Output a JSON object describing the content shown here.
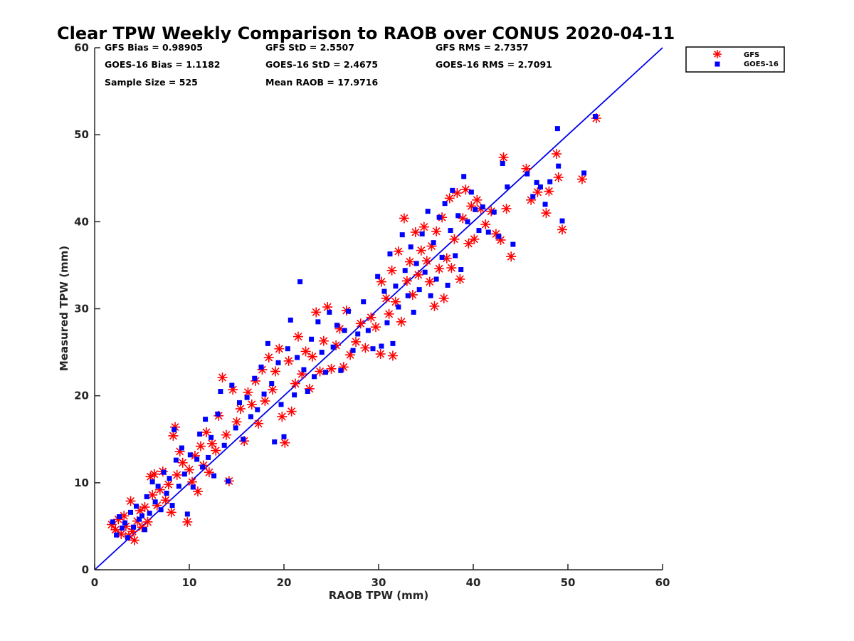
{
  "chart_data": {
    "type": "scatter",
    "title": "Clear TPW Weekly Comparison to RAOB over CONUS 2020-04-11",
    "xlabel": "RAOB TPW (mm)",
    "ylabel": "Measured TPW (mm)",
    "xlim": [
      0,
      60
    ],
    "ylim": [
      0,
      60
    ],
    "xticks": [
      "0",
      "10",
      "20",
      "30",
      "40",
      "50",
      "60"
    ],
    "yticks": [
      "0",
      "10",
      "20",
      "30",
      "40",
      "50",
      "60"
    ],
    "grid": false,
    "legend_position": "top-right, outside plot",
    "reference_line": {
      "x": [
        0,
        60
      ],
      "y": [
        0,
        60
      ],
      "color": "#0000ee"
    },
    "stats": [
      "GFS Bias = 0.98905",
      "GFS StD = 2.5507",
      "GFS RMS = 2.7357",
      "GOES-16 Bias = 1.1182",
      "GOES-16 StD = 2.4675",
      "GOES-16 RMS = 2.7091",
      "Sample Size = 525",
      "Mean RAOB = 17.9716"
    ],
    "series": [
      {
        "name": "GFS",
        "marker": "asterisk",
        "color": "#ff0000",
        "points": [
          [
            1.8,
            5.2
          ],
          [
            2.2,
            4.6
          ],
          [
            2.5,
            5.8
          ],
          [
            2.8,
            4.1
          ],
          [
            3.1,
            6.2
          ],
          [
            3.3,
            5.0
          ],
          [
            3.6,
            3.9
          ],
          [
            3.8,
            7.9
          ],
          [
            4.0,
            4.4
          ],
          [
            4.2,
            3.4
          ],
          [
            4.5,
            5.6
          ],
          [
            4.8,
            6.8
          ],
          [
            5.0,
            4.9
          ],
          [
            5.3,
            7.2
          ],
          [
            5.6,
            5.5
          ],
          [
            5.9,
            10.7
          ],
          [
            6.1,
            8.6
          ],
          [
            6.3,
            11.0
          ],
          [
            6.6,
            7.4
          ],
          [
            6.9,
            9.2
          ],
          [
            7.2,
            11.3
          ],
          [
            7.5,
            8.0
          ],
          [
            7.8,
            9.8
          ],
          [
            8.1,
            6.6
          ],
          [
            8.3,
            15.4
          ],
          [
            8.5,
            16.4
          ],
          [
            8.7,
            10.9
          ],
          [
            9.0,
            13.6
          ],
          [
            9.3,
            12.3
          ],
          [
            9.8,
            5.5
          ],
          [
            10.0,
            11.5
          ],
          [
            10.3,
            10.1
          ],
          [
            10.6,
            13.1
          ],
          [
            10.9,
            9.0
          ],
          [
            11.2,
            14.2
          ],
          [
            11.5,
            12.0
          ],
          [
            11.8,
            15.8
          ],
          [
            12.1,
            11.2
          ],
          [
            12.4,
            14.5
          ],
          [
            12.8,
            13.7
          ],
          [
            13.1,
            17.7
          ],
          [
            13.5,
            22.1
          ],
          [
            13.9,
            15.5
          ],
          [
            14.2,
            10.2
          ],
          [
            14.6,
            20.7
          ],
          [
            15.0,
            17.0
          ],
          [
            15.4,
            18.5
          ],
          [
            15.8,
            14.8
          ],
          [
            16.2,
            20.4
          ],
          [
            16.6,
            19.0
          ],
          [
            17.0,
            21.7
          ],
          [
            17.3,
            16.8
          ],
          [
            17.7,
            23.0
          ],
          [
            18.0,
            19.4
          ],
          [
            18.4,
            24.4
          ],
          [
            18.8,
            20.7
          ],
          [
            19.1,
            22.8
          ],
          [
            19.5,
            25.4
          ],
          [
            19.8,
            17.6
          ],
          [
            20.1,
            14.6
          ],
          [
            20.5,
            24.0
          ],
          [
            20.8,
            18.2
          ],
          [
            21.2,
            21.4
          ],
          [
            21.5,
            26.8
          ],
          [
            21.9,
            22.5
          ],
          [
            22.3,
            25.1
          ],
          [
            22.7,
            20.8
          ],
          [
            23.0,
            24.5
          ],
          [
            23.4,
            29.6
          ],
          [
            23.8,
            22.8
          ],
          [
            24.2,
            26.3
          ],
          [
            24.6,
            30.2
          ],
          [
            25.0,
            23.1
          ],
          [
            25.5,
            25.8
          ],
          [
            25.9,
            27.7
          ],
          [
            26.3,
            23.3
          ],
          [
            26.6,
            29.8
          ],
          [
            27.0,
            24.7
          ],
          [
            27.6,
            26.2
          ],
          [
            28.1,
            28.3
          ],
          [
            28.6,
            25.5
          ],
          [
            29.2,
            29.0
          ],
          [
            29.7,
            27.9
          ],
          [
            30.3,
            33.1
          ],
          [
            30.2,
            24.8
          ],
          [
            30.8,
            31.2
          ],
          [
            31.1,
            29.4
          ],
          [
            31.4,
            34.4
          ],
          [
            31.5,
            24.6
          ],
          [
            31.8,
            30.8
          ],
          [
            32.1,
            36.6
          ],
          [
            32.4,
            28.5
          ],
          [
            32.7,
            40.4
          ],
          [
            33.0,
            33.2
          ],
          [
            33.3,
            35.4
          ],
          [
            33.6,
            31.6
          ],
          [
            33.9,
            38.8
          ],
          [
            34.2,
            33.9
          ],
          [
            34.5,
            36.7
          ],
          [
            34.8,
            39.4
          ],
          [
            35.1,
            35.5
          ],
          [
            35.4,
            33.1
          ],
          [
            35.6,
            37.2
          ],
          [
            35.9,
            30.3
          ],
          [
            36.1,
            38.9
          ],
          [
            36.4,
            34.6
          ],
          [
            36.7,
            40.5
          ],
          [
            36.9,
            31.2
          ],
          [
            37.2,
            35.8
          ],
          [
            37.5,
            42.7
          ],
          [
            37.7,
            34.7
          ],
          [
            38.0,
            38.0
          ],
          [
            38.3,
            43.3
          ],
          [
            38.6,
            33.4
          ],
          [
            38.9,
            40.4
          ],
          [
            39.2,
            43.7
          ],
          [
            39.5,
            37.5
          ],
          [
            39.8,
            41.8
          ],
          [
            40.1,
            38.0
          ],
          [
            40.4,
            42.5
          ],
          [
            40.8,
            41.5
          ],
          [
            41.3,
            39.7
          ],
          [
            41.9,
            41.2
          ],
          [
            42.4,
            38.6
          ],
          [
            42.9,
            37.9
          ],
          [
            43.2,
            47.4
          ],
          [
            43.5,
            41.5
          ],
          [
            44.0,
            36.0
          ],
          [
            45.6,
            46.1
          ],
          [
            46.1,
            42.5
          ],
          [
            46.8,
            43.4
          ],
          [
            47.7,
            41.0
          ],
          [
            48.0,
            43.5
          ],
          [
            48.8,
            47.8
          ],
          [
            49.0,
            45.1
          ],
          [
            49.4,
            39.1
          ],
          [
            51.5,
            44.9
          ],
          [
            53.0,
            51.9
          ]
        ]
      },
      {
        "name": "GOES-16",
        "marker": "square",
        "color": "#0000ff",
        "points": [
          [
            1.9,
            5.5
          ],
          [
            2.3,
            4.0
          ],
          [
            2.6,
            6.1
          ],
          [
            2.9,
            4.8
          ],
          [
            3.2,
            5.4
          ],
          [
            3.5,
            3.7
          ],
          [
            3.8,
            6.6
          ],
          [
            4.1,
            4.9
          ],
          [
            4.4,
            7.3
          ],
          [
            4.7,
            5.8
          ],
          [
            5.0,
            6.2
          ],
          [
            5.3,
            4.6
          ],
          [
            5.5,
            8.4
          ],
          [
            5.8,
            6.5
          ],
          [
            6.1,
            10.1
          ],
          [
            6.4,
            7.8
          ],
          [
            6.7,
            9.6
          ],
          [
            7.0,
            6.9
          ],
          [
            7.3,
            11.2
          ],
          [
            7.6,
            8.8
          ],
          [
            7.9,
            10.5
          ],
          [
            8.2,
            7.4
          ],
          [
            8.4,
            16.1
          ],
          [
            8.6,
            12.6
          ],
          [
            8.9,
            9.6
          ],
          [
            9.2,
            14.0
          ],
          [
            9.5,
            11.0
          ],
          [
            9.8,
            6.4
          ],
          [
            10.1,
            13.2
          ],
          [
            10.4,
            9.5
          ],
          [
            10.8,
            12.7
          ],
          [
            11.1,
            15.6
          ],
          [
            11.4,
            11.8
          ],
          [
            11.7,
            17.3
          ],
          [
            12.0,
            12.9
          ],
          [
            12.3,
            15.2
          ],
          [
            12.6,
            10.8
          ],
          [
            13.0,
            17.9
          ],
          [
            13.3,
            20.5
          ],
          [
            13.7,
            14.3
          ],
          [
            14.1,
            10.2
          ],
          [
            14.5,
            21.2
          ],
          [
            14.9,
            16.3
          ],
          [
            15.3,
            19.2
          ],
          [
            15.7,
            15.0
          ],
          [
            16.1,
            19.8
          ],
          [
            16.5,
            17.6
          ],
          [
            16.9,
            22.0
          ],
          [
            17.2,
            18.4
          ],
          [
            17.6,
            23.3
          ],
          [
            17.9,
            20.2
          ],
          [
            18.3,
            26.0
          ],
          [
            18.7,
            21.4
          ],
          [
            19.0,
            14.7
          ],
          [
            19.4,
            23.8
          ],
          [
            19.7,
            19.0
          ],
          [
            20.0,
            15.3
          ],
          [
            20.4,
            25.4
          ],
          [
            20.7,
            28.7
          ],
          [
            21.1,
            20.1
          ],
          [
            21.4,
            24.4
          ],
          [
            21.7,
            33.1
          ],
          [
            22.1,
            23.0
          ],
          [
            22.5,
            20.5
          ],
          [
            22.9,
            26.5
          ],
          [
            23.2,
            22.2
          ],
          [
            23.6,
            28.5
          ],
          [
            24.0,
            25.0
          ],
          [
            24.4,
            22.7
          ],
          [
            24.8,
            29.6
          ],
          [
            25.2,
            25.6
          ],
          [
            25.6,
            28.1
          ],
          [
            26.0,
            22.9
          ],
          [
            26.4,
            27.5
          ],
          [
            26.8,
            29.7
          ],
          [
            27.3,
            25.2
          ],
          [
            27.8,
            27.1
          ],
          [
            28.4,
            30.8
          ],
          [
            28.9,
            27.5
          ],
          [
            29.4,
            25.4
          ],
          [
            29.9,
            33.7
          ],
          [
            30.3,
            25.7
          ],
          [
            30.6,
            32.0
          ],
          [
            30.9,
            28.4
          ],
          [
            31.2,
            36.3
          ],
          [
            31.5,
            26.0
          ],
          [
            31.8,
            32.6
          ],
          [
            32.1,
            30.2
          ],
          [
            32.5,
            38.5
          ],
          [
            32.8,
            34.4
          ],
          [
            33.1,
            31.5
          ],
          [
            33.4,
            37.1
          ],
          [
            33.7,
            29.6
          ],
          [
            34.0,
            35.2
          ],
          [
            34.3,
            32.2
          ],
          [
            34.6,
            38.6
          ],
          [
            34.9,
            34.2
          ],
          [
            35.2,
            41.2
          ],
          [
            35.5,
            31.5
          ],
          [
            35.8,
            37.6
          ],
          [
            36.1,
            33.4
          ],
          [
            36.4,
            40.5
          ],
          [
            36.7,
            35.9
          ],
          [
            37.0,
            42.1
          ],
          [
            37.3,
            32.7
          ],
          [
            37.6,
            39.0
          ],
          [
            37.8,
            43.6
          ],
          [
            38.1,
            36.1
          ],
          [
            38.4,
            40.7
          ],
          [
            38.7,
            34.5
          ],
          [
            39.0,
            45.2
          ],
          [
            39.4,
            40.0
          ],
          [
            39.8,
            43.4
          ],
          [
            40.2,
            41.4
          ],
          [
            40.6,
            39.0
          ],
          [
            41.0,
            41.7
          ],
          [
            41.6,
            38.8
          ],
          [
            42.2,
            41.1
          ],
          [
            42.7,
            38.3
          ],
          [
            43.1,
            46.7
          ],
          [
            43.6,
            44.0
          ],
          [
            44.2,
            37.4
          ],
          [
            45.7,
            45.5
          ],
          [
            46.3,
            42.9
          ],
          [
            46.7,
            44.5
          ],
          [
            47.1,
            44.0
          ],
          [
            47.6,
            42.0
          ],
          [
            48.1,
            44.6
          ],
          [
            48.9,
            50.7
          ],
          [
            49.0,
            46.4
          ],
          [
            49.4,
            40.1
          ],
          [
            51.7,
            45.6
          ],
          [
            52.9,
            52.1
          ]
        ]
      }
    ]
  }
}
